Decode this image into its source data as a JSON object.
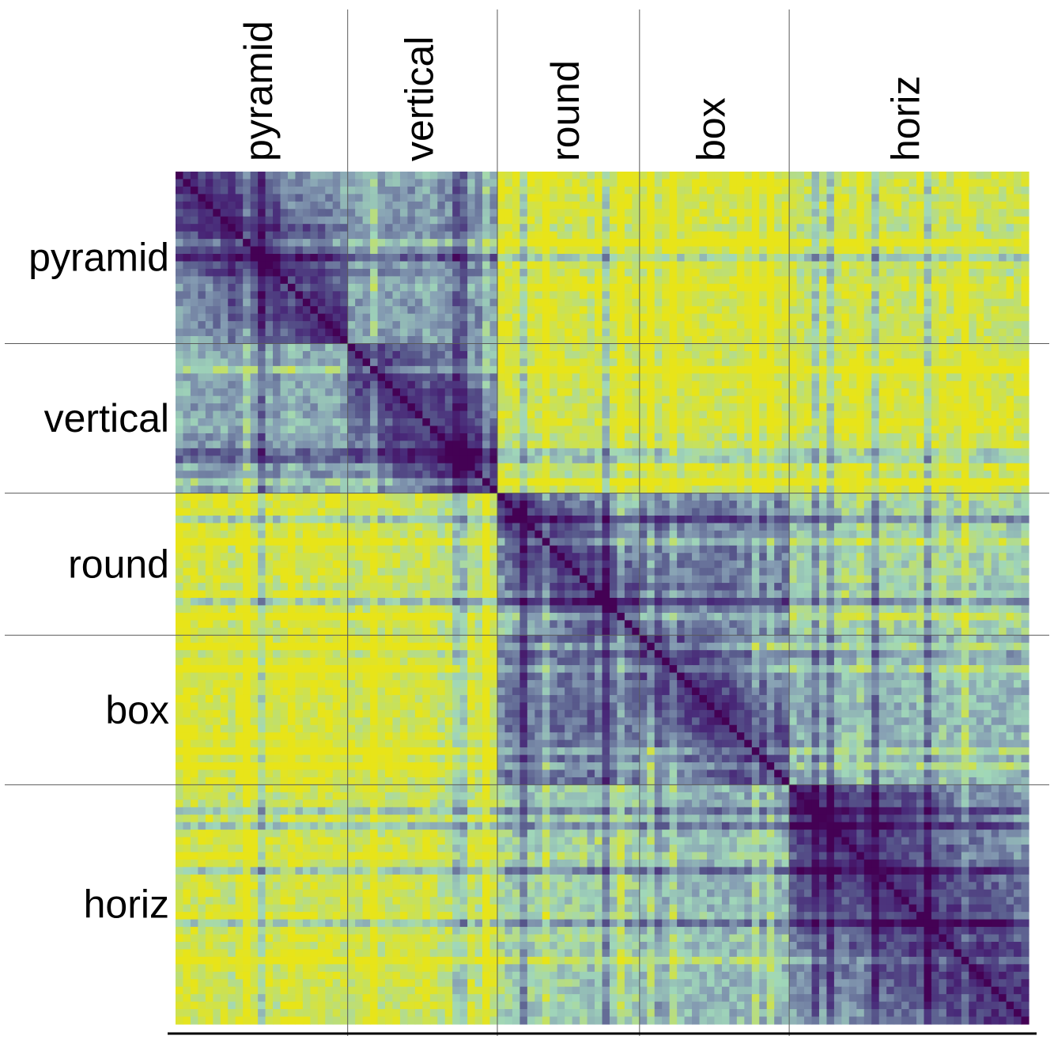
{
  "chart_data": {
    "type": "heatmap",
    "title": "",
    "xlabel": "",
    "ylabel": "",
    "groups": [
      {
        "name": "pyramid",
        "count": 23
      },
      {
        "name": "vertical",
        "count": 20
      },
      {
        "name": "round",
        "count": 19
      },
      {
        "name": "box",
        "count": 20
      },
      {
        "name": "horiz",
        "count": 32
      }
    ],
    "x_tick_labels": [
      "pyramid",
      "vertical",
      "round",
      "box",
      "horiz"
    ],
    "y_tick_labels": [
      "pyramid",
      "vertical",
      "round",
      "box",
      "horiz"
    ],
    "x_tick_position": "top",
    "y_tick_position": "left",
    "colormap": "viridis (dark purple = low / similar, yellow = high / dissimilar)",
    "colors": {
      "low": "#45205e",
      "mid_low": "#5b5a8c",
      "mid": "#8fa4b8",
      "mid_high": "#a6dcb6",
      "high": "#e6e419",
      "group_divider": "#5a5a5a",
      "axis_line": "#000000"
    },
    "diagonal_value": 0.0,
    "block_mean_values": [
      [
        0.3,
        0.55,
        0.92,
        0.93,
        0.88
      ],
      [
        0.58,
        0.32,
        0.88,
        0.9,
        0.92
      ],
      [
        0.92,
        0.86,
        0.35,
        0.45,
        0.72
      ],
      [
        0.94,
        0.9,
        0.42,
        0.3,
        0.62
      ],
      [
        0.9,
        0.88,
        0.7,
        0.62,
        0.28
      ]
    ],
    "value_range": [
      0,
      1
    ],
    "grid": false,
    "legend": "none"
  }
}
